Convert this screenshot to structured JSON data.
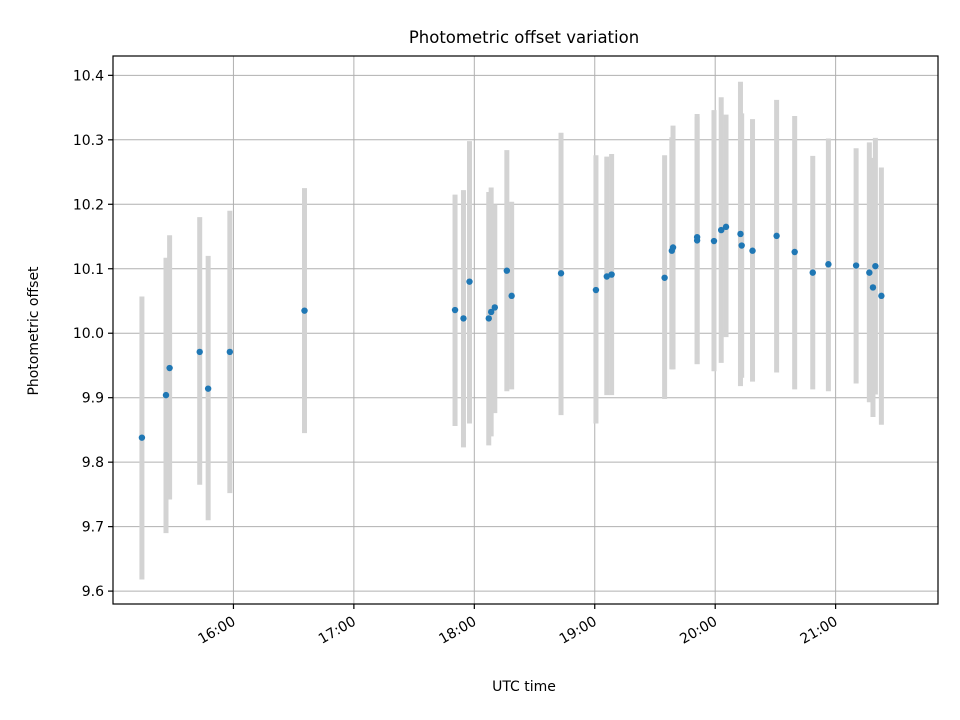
{
  "chart_data": {
    "type": "scatter",
    "title": "Photometric offset variation",
    "xlabel": "UTC time",
    "ylabel": "Photometric offset",
    "x_unit": "hours UTC",
    "xlim": [
      15.0,
      21.85
    ],
    "ylim": [
      9.58,
      10.43
    ],
    "grid": true,
    "y_ticks": [
      9.6,
      9.7,
      9.8,
      9.9,
      10.0,
      10.1,
      10.2,
      10.3,
      10.4
    ],
    "y_tick_labels": [
      "9.6",
      "9.7",
      "9.8",
      "9.9",
      "10.0",
      "10.1",
      "10.2",
      "10.3",
      "10.4"
    ],
    "x_ticks": [
      16,
      17,
      18,
      19,
      20,
      21
    ],
    "x_tick_labels": [
      "16:00",
      "17:00",
      "18:00",
      "19:00",
      "20:00",
      "21:00"
    ],
    "colors": {
      "point": "#1f77b4",
      "errorbar": "#d3d3d3",
      "grid": "#b0b0b0"
    },
    "points": [
      {
        "x": 15.24,
        "y": 9.838,
        "lo": 9.618,
        "hi": 10.057
      },
      {
        "x": 15.44,
        "y": 9.904,
        "lo": 9.69,
        "hi": 10.117
      },
      {
        "x": 15.47,
        "y": 9.946,
        "lo": 9.742,
        "hi": 10.152
      },
      {
        "x": 15.72,
        "y": 9.971,
        "lo": 9.765,
        "hi": 10.18
      },
      {
        "x": 15.79,
        "y": 9.914,
        "lo": 9.71,
        "hi": 10.12
      },
      {
        "x": 15.97,
        "y": 9.971,
        "lo": 9.752,
        "hi": 10.19
      },
      {
        "x": 16.59,
        "y": 10.035,
        "lo": 9.845,
        "hi": 10.225
      },
      {
        "x": 17.84,
        "y": 10.036,
        "lo": 9.856,
        "hi": 10.215
      },
      {
        "x": 17.91,
        "y": 10.023,
        "lo": 9.823,
        "hi": 10.222
      },
      {
        "x": 17.96,
        "y": 10.08,
        "lo": 9.86,
        "hi": 10.298
      },
      {
        "x": 18.12,
        "y": 10.023,
        "lo": 9.826,
        "hi": 10.219
      },
      {
        "x": 18.14,
        "y": 10.033,
        "lo": 9.84,
        "hi": 10.226
      },
      {
        "x": 18.17,
        "y": 10.04,
        "lo": 9.876,
        "hi": 10.2
      },
      {
        "x": 18.27,
        "y": 10.097,
        "lo": 9.91,
        "hi": 10.284
      },
      {
        "x": 18.31,
        "y": 10.058,
        "lo": 9.913,
        "hi": 10.204
      },
      {
        "x": 18.72,
        "y": 10.093,
        "lo": 9.873,
        "hi": 10.311
      },
      {
        "x": 19.01,
        "y": 10.067,
        "lo": 9.86,
        "hi": 10.276
      },
      {
        "x": 19.1,
        "y": 10.088,
        "lo": 9.904,
        "hi": 10.274
      },
      {
        "x": 19.14,
        "y": 10.091,
        "lo": 9.904,
        "hi": 10.278
      },
      {
        "x": 19.58,
        "y": 10.086,
        "lo": 9.898,
        "hi": 10.276
      },
      {
        "x": 19.64,
        "y": 10.128,
        "lo": 9.944,
        "hi": 10.304
      },
      {
        "x": 19.65,
        "y": 10.133,
        "lo": 9.944,
        "hi": 10.322
      },
      {
        "x": 19.85,
        "y": 10.149,
        "lo": 9.952,
        "hi": 10.34
      },
      {
        "x": 19.85,
        "y": 10.144,
        "lo": 9.952,
        "hi": 10.336
      },
      {
        "x": 19.99,
        "y": 10.143,
        "lo": 9.941,
        "hi": 10.346
      },
      {
        "x": 20.05,
        "y": 10.16,
        "lo": 9.954,
        "hi": 10.366
      },
      {
        "x": 20.09,
        "y": 10.165,
        "lo": 9.994,
        "hi": 10.339
      },
      {
        "x": 20.21,
        "y": 10.154,
        "lo": 9.918,
        "hi": 10.39
      },
      {
        "x": 20.22,
        "y": 10.136,
        "lo": 9.931,
        "hi": 10.341
      },
      {
        "x": 20.31,
        "y": 10.128,
        "lo": 9.925,
        "hi": 10.332
      },
      {
        "x": 20.51,
        "y": 10.151,
        "lo": 9.939,
        "hi": 10.362
      },
      {
        "x": 20.66,
        "y": 10.126,
        "lo": 9.913,
        "hi": 10.337
      },
      {
        "x": 20.81,
        "y": 10.094,
        "lo": 9.913,
        "hi": 10.275
      },
      {
        "x": 20.94,
        "y": 10.107,
        "lo": 9.91,
        "hi": 10.302
      },
      {
        "x": 21.17,
        "y": 10.105,
        "lo": 9.922,
        "hi": 10.287
      },
      {
        "x": 21.28,
        "y": 10.094,
        "lo": 9.893,
        "hi": 10.296
      },
      {
        "x": 21.31,
        "y": 10.071,
        "lo": 9.87,
        "hi": 10.272
      },
      {
        "x": 21.33,
        "y": 10.104,
        "lo": 9.905,
        "hi": 10.303
      },
      {
        "x": 21.38,
        "y": 10.058,
        "lo": 9.858,
        "hi": 10.257
      }
    ]
  }
}
